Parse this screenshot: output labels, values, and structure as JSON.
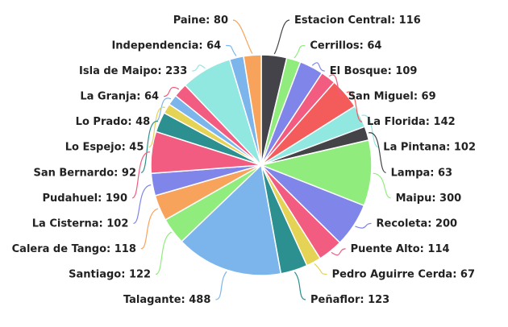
{
  "chart_data": {
    "type": "pie",
    "title": "",
    "slices": [
      {
        "name": "Estacion Central",
        "value": 116,
        "color": "#444349"
      },
      {
        "name": "Cerrillos",
        "value": 64,
        "color": "#90ed7d"
      },
      {
        "name": "El Bosque",
        "value": 109,
        "color": "#8085e9"
      },
      {
        "name": "San Miguel",
        "value": 69,
        "color": "#f15c80"
      },
      {
        "name": "La Florida",
        "value": 142,
        "color": "#f45b5b"
      },
      {
        "name": "La Pintana",
        "value": 102,
        "color": "#91e8e1"
      },
      {
        "name": "Lampa",
        "value": 63,
        "color": "#434348"
      },
      {
        "name": "Maipu",
        "value": 300,
        "color": "#90ed7d"
      },
      {
        "name": "Recoleta",
        "value": 200,
        "color": "#8085e9"
      },
      {
        "name": "Puente Alto",
        "value": 114,
        "color": "#f15c80"
      },
      {
        "name": "Pedro Aguirre Cerda",
        "value": 67,
        "color": "#e4d354"
      },
      {
        "name": "Peñaflor",
        "value": 123,
        "color": "#2b908f"
      },
      {
        "name": "Talagante",
        "value": 488,
        "color": "#7cb5ec"
      },
      {
        "name": "Santiago",
        "value": 122,
        "color": "#90ed7d"
      },
      {
        "name": "Calera de Tango",
        "value": 118,
        "color": "#f7a35c"
      },
      {
        "name": "La Cisterna",
        "value": 102,
        "color": "#8085e9"
      },
      {
        "name": "Pudahuel",
        "value": 190,
        "color": "#f15c80"
      },
      {
        "name": "San Bernardo",
        "value": 92,
        "color": "#2b908f"
      },
      {
        "name": "Lo Espejo",
        "value": 45,
        "color": "#e4d354"
      },
      {
        "name": "Lo Prado",
        "value": 48,
        "color": "#7cb5ec"
      },
      {
        "name": "La Granja",
        "value": 64,
        "color": "#f15c80"
      },
      {
        "name": "Isla de Maipo",
        "value": 233,
        "color": "#91e8e1"
      },
      {
        "name": "Independencia",
        "value": 64,
        "color": "#7cb5ec"
      },
      {
        "name": "Paine",
        "value": 80,
        "color": "#f7a35c"
      }
    ],
    "label_format": "{name}: {value}"
  }
}
